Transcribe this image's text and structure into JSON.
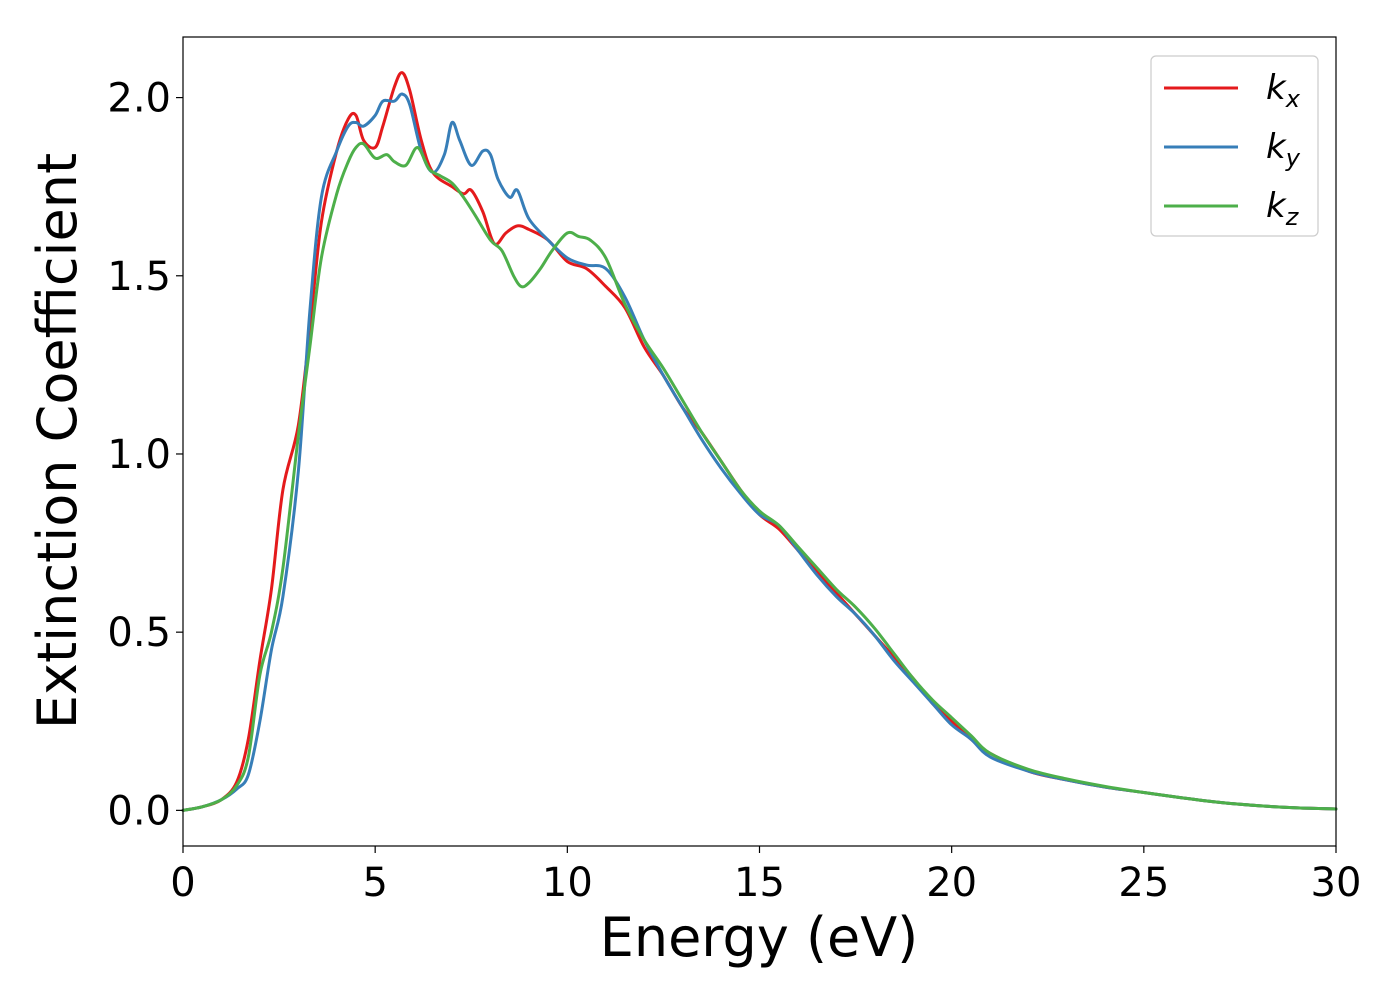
{
  "chart_data": {
    "type": "line",
    "title": "",
    "xlabel": "Energy (eV)",
    "ylabel": "Extinction Coefficient",
    "xlim": [
      0,
      30
    ],
    "ylim": [
      -0.1,
      2.17
    ],
    "xticks": [
      0,
      5,
      10,
      15,
      20,
      25,
      30
    ],
    "xtick_labels": [
      "0",
      "5",
      "10",
      "15",
      "20",
      "25",
      "30"
    ],
    "yticks": [
      0.0,
      0.5,
      1.0,
      1.5,
      2.0
    ],
    "ytick_labels": [
      "0.0",
      "0.5",
      "1.0",
      "1.5",
      "2.0"
    ],
    "grid": false,
    "legend_position": "top-right",
    "series": [
      {
        "name": "k",
        "subscript": "x",
        "color": "#e41a1c",
        "x": [
          0,
          0.5,
          1.0,
          1.4,
          1.7,
          2.0,
          2.3,
          2.6,
          3.0,
          3.3,
          3.6,
          4.0,
          4.3,
          4.5,
          4.7,
          5.0,
          5.2,
          5.5,
          5.7,
          5.9,
          6.2,
          6.5,
          7.0,
          7.3,
          7.5,
          7.8,
          8.1,
          8.4,
          8.7,
          9.0,
          9.5,
          10.0,
          10.5,
          11.0,
          11.5,
          12.0,
          12.5,
          13.0,
          13.5,
          14.0,
          14.5,
          15.0,
          15.5,
          16.0,
          16.5,
          17.0,
          17.5,
          18.0,
          18.5,
          19.0,
          19.5,
          20.0,
          20.5,
          21.0,
          22.0,
          23.0,
          24.0,
          25.0,
          26.0,
          27.0,
          28.0,
          29.0,
          30.0
        ],
        "y": [
          0.0,
          0.01,
          0.03,
          0.08,
          0.2,
          0.42,
          0.62,
          0.9,
          1.08,
          1.35,
          1.65,
          1.85,
          1.94,
          1.95,
          1.88,
          1.86,
          1.92,
          2.03,
          2.07,
          2.02,
          1.88,
          1.79,
          1.75,
          1.73,
          1.74,
          1.68,
          1.59,
          1.62,
          1.64,
          1.63,
          1.6,
          1.54,
          1.52,
          1.47,
          1.41,
          1.3,
          1.22,
          1.13,
          1.06,
          0.98,
          0.9,
          0.83,
          0.79,
          0.73,
          0.67,
          0.61,
          0.55,
          0.49,
          0.43,
          0.37,
          0.3,
          0.25,
          0.2,
          0.16,
          0.11,
          0.085,
          0.065,
          0.05,
          0.035,
          0.022,
          0.013,
          0.007,
          0.004
        ]
      },
      {
        "name": "k",
        "subscript": "y",
        "color": "#377eb8",
        "x": [
          0,
          0.5,
          1.0,
          1.4,
          1.7,
          2.0,
          2.3,
          2.6,
          3.0,
          3.3,
          3.6,
          4.0,
          4.3,
          4.5,
          4.7,
          5.0,
          5.2,
          5.5,
          5.7,
          5.9,
          6.2,
          6.5,
          6.8,
          7.0,
          7.2,
          7.5,
          7.8,
          8.0,
          8.2,
          8.5,
          8.7,
          9.0,
          9.5,
          10.0,
          10.5,
          11.0,
          11.5,
          12.0,
          12.5,
          13.0,
          13.5,
          14.0,
          14.5,
          15.0,
          15.5,
          16.0,
          16.5,
          17.0,
          17.5,
          18.0,
          18.5,
          19.0,
          19.5,
          20.0,
          20.5,
          21.0,
          22.0,
          23.0,
          24.0,
          25.0,
          26.0,
          27.0,
          28.0,
          29.0,
          30.0
        ],
        "y": [
          0.0,
          0.01,
          0.03,
          0.06,
          0.1,
          0.25,
          0.45,
          0.6,
          0.95,
          1.4,
          1.72,
          1.85,
          1.92,
          1.93,
          1.92,
          1.95,
          1.99,
          1.99,
          2.01,
          1.98,
          1.85,
          1.79,
          1.84,
          1.93,
          1.88,
          1.81,
          1.85,
          1.84,
          1.77,
          1.72,
          1.74,
          1.66,
          1.6,
          1.55,
          1.53,
          1.52,
          1.44,
          1.32,
          1.22,
          1.13,
          1.04,
          0.96,
          0.89,
          0.83,
          0.8,
          0.73,
          0.66,
          0.6,
          0.55,
          0.49,
          0.42,
          0.36,
          0.3,
          0.24,
          0.2,
          0.15,
          0.11,
          0.085,
          0.065,
          0.05,
          0.035,
          0.022,
          0.013,
          0.007,
          0.004
        ]
      },
      {
        "name": "k",
        "subscript": "z",
        "color": "#4daf4a",
        "x": [
          0,
          0.5,
          1.0,
          1.4,
          1.7,
          2.0,
          2.3,
          2.6,
          3.0,
          3.3,
          3.6,
          4.0,
          4.3,
          4.5,
          4.7,
          5.0,
          5.3,
          5.5,
          5.8,
          6.1,
          6.4,
          6.7,
          7.0,
          7.3,
          7.6,
          8.0,
          8.3,
          8.6,
          8.8,
          9.0,
          9.3,
          9.6,
          10.0,
          10.3,
          10.6,
          11.0,
          11.5,
          12.0,
          12.5,
          13.0,
          13.5,
          14.0,
          14.5,
          15.0,
          15.5,
          16.0,
          16.5,
          17.0,
          17.5,
          18.0,
          18.5,
          19.0,
          19.5,
          20.0,
          20.5,
          21.0,
          22.0,
          23.0,
          24.0,
          25.0,
          26.0,
          27.0,
          28.0,
          29.0,
          30.0
        ],
        "y": [
          0.0,
          0.01,
          0.03,
          0.07,
          0.15,
          0.38,
          0.5,
          0.68,
          1.05,
          1.3,
          1.55,
          1.73,
          1.82,
          1.86,
          1.87,
          1.83,
          1.84,
          1.82,
          1.81,
          1.86,
          1.8,
          1.78,
          1.76,
          1.72,
          1.67,
          1.6,
          1.57,
          1.5,
          1.47,
          1.48,
          1.52,
          1.57,
          1.62,
          1.61,
          1.6,
          1.55,
          1.42,
          1.32,
          1.24,
          1.15,
          1.06,
          0.98,
          0.9,
          0.84,
          0.8,
          0.74,
          0.68,
          0.62,
          0.57,
          0.51,
          0.44,
          0.37,
          0.31,
          0.26,
          0.21,
          0.16,
          0.115,
          0.088,
          0.067,
          0.05,
          0.035,
          0.022,
          0.013,
          0.007,
          0.004
        ]
      }
    ]
  }
}
